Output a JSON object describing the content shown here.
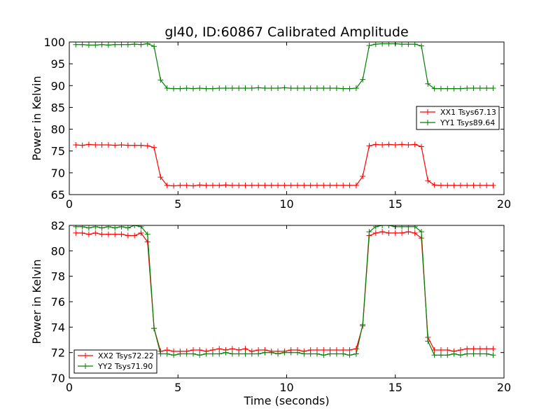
{
  "chart_data": [
    {
      "type": "line",
      "title": "gl40, ID:60867 Calibrated Amplitude",
      "xlabel": "",
      "ylabel": "Power in Kelvin",
      "xlim": [
        0,
        20
      ],
      "ylim": [
        65,
        100
      ],
      "xticks": [
        0,
        5,
        10,
        15,
        20
      ],
      "yticks": [
        65,
        70,
        75,
        80,
        85,
        90,
        95,
        100
      ],
      "grid": false,
      "legend_position": "center-right",
      "x": [
        0.3,
        0.6,
        0.9,
        1.2,
        1.5,
        1.8,
        2.1,
        2.4,
        2.7,
        3.0,
        3.3,
        3.6,
        3.9,
        4.2,
        4.5,
        4.8,
        5.1,
        5.4,
        5.7,
        6.0,
        6.3,
        6.6,
        6.9,
        7.2,
        7.5,
        7.8,
        8.1,
        8.4,
        8.7,
        9.0,
        9.3,
        9.6,
        9.9,
        10.2,
        10.5,
        10.8,
        11.1,
        11.4,
        11.7,
        12.0,
        12.3,
        12.6,
        12.9,
        13.2,
        13.5,
        13.8,
        14.1,
        14.4,
        14.7,
        15.0,
        15.3,
        15.6,
        15.9,
        16.2,
        16.5,
        16.8,
        17.1,
        17.4,
        17.7,
        18.0,
        18.3,
        18.6,
        18.9,
        19.2,
        19.5
      ],
      "series": [
        {
          "name": "XX1 Tsys67.13",
          "color": "#ff0000",
          "values": [
            76.4,
            76.3,
            76.5,
            76.4,
            76.4,
            76.4,
            76.3,
            76.4,
            76.3,
            76.3,
            76.3,
            76.2,
            75.8,
            69.0,
            67.1,
            67.0,
            67.1,
            67.1,
            67.0,
            67.2,
            67.1,
            67.1,
            67.1,
            67.2,
            67.1,
            67.1,
            67.1,
            67.1,
            67.1,
            67.1,
            67.1,
            67.1,
            67.1,
            67.1,
            67.1,
            67.1,
            67.1,
            67.1,
            67.1,
            67.1,
            67.1,
            67.1,
            67.1,
            67.1,
            69.2,
            76.2,
            76.5,
            76.4,
            76.5,
            76.4,
            76.5,
            76.4,
            76.5,
            76.0,
            68.2,
            67.2,
            67.1,
            67.1,
            67.1,
            67.1,
            67.1,
            67.1,
            67.1,
            67.1,
            67.1
          ]
        },
        {
          "name": "YY1 Tsys89.64",
          "color": "#008000",
          "values": [
            99.4,
            99.4,
            99.3,
            99.3,
            99.4,
            99.3,
            99.4,
            99.4,
            99.4,
            99.5,
            99.4,
            99.6,
            99.0,
            91.3,
            89.4,
            89.3,
            89.3,
            89.4,
            89.3,
            89.4,
            89.3,
            89.3,
            89.4,
            89.4,
            89.4,
            89.4,
            89.4,
            89.4,
            89.5,
            89.4,
            89.4,
            89.4,
            89.5,
            89.4,
            89.4,
            89.4,
            89.4,
            89.4,
            89.4,
            89.4,
            89.4,
            89.3,
            89.3,
            89.4,
            91.4,
            99.2,
            99.5,
            99.6,
            99.6,
            99.6,
            99.5,
            99.5,
            99.5,
            99.1,
            90.4,
            89.3,
            89.3,
            89.3,
            89.3,
            89.3,
            89.4,
            89.4,
            89.4,
            89.4,
            89.4
          ]
        }
      ]
    },
    {
      "type": "line",
      "title": "",
      "xlabel": "Time (seconds)",
      "ylabel": "Power in Kelvin",
      "xlim": [
        0,
        20
      ],
      "ylim": [
        70,
        82
      ],
      "xticks": [
        0,
        5,
        10,
        15,
        20
      ],
      "yticks": [
        70,
        72,
        74,
        76,
        78,
        80,
        82
      ],
      "grid": false,
      "legend_position": "lower-left",
      "x": [
        0.3,
        0.6,
        0.9,
        1.2,
        1.5,
        1.8,
        2.1,
        2.4,
        2.7,
        3.0,
        3.3,
        3.6,
        3.9,
        4.2,
        4.5,
        4.8,
        5.1,
        5.4,
        5.7,
        6.0,
        6.3,
        6.6,
        6.9,
        7.2,
        7.5,
        7.8,
        8.1,
        8.4,
        8.7,
        9.0,
        9.3,
        9.6,
        9.9,
        10.2,
        10.5,
        10.8,
        11.1,
        11.4,
        11.7,
        12.0,
        12.3,
        12.6,
        12.9,
        13.2,
        13.5,
        13.8,
        14.1,
        14.4,
        14.7,
        15.0,
        15.3,
        15.6,
        15.9,
        16.2,
        16.5,
        16.8,
        17.1,
        17.4,
        17.7,
        18.0,
        18.3,
        18.6,
        18.9,
        19.2,
        19.5
      ],
      "series": [
        {
          "name": "XX2 Tsys72.22",
          "color": "#ff0000",
          "values": [
            81.4,
            81.4,
            81.3,
            81.4,
            81.3,
            81.3,
            81.3,
            81.3,
            81.2,
            81.2,
            81.4,
            80.7,
            73.9,
            72.1,
            72.2,
            72.1,
            72.1,
            72.1,
            72.2,
            72.2,
            72.1,
            72.2,
            72.3,
            72.2,
            72.3,
            72.2,
            72.3,
            72.1,
            72.2,
            72.2,
            72.1,
            72.1,
            72.1,
            72.2,
            72.2,
            72.1,
            72.2,
            72.2,
            72.2,
            72.2,
            72.2,
            72.2,
            72.2,
            72.3,
            74.1,
            81.2,
            81.4,
            81.5,
            81.4,
            81.4,
            81.4,
            81.5,
            81.4,
            81.0,
            73.2,
            72.2,
            72.2,
            72.2,
            72.1,
            72.2,
            72.3,
            72.3,
            72.3,
            72.3,
            72.3
          ]
        },
        {
          "name": "YY2 Tsys71.90",
          "color": "#008000",
          "values": [
            81.9,
            81.9,
            81.8,
            81.9,
            81.8,
            81.9,
            81.8,
            81.9,
            81.8,
            82.0,
            81.9,
            81.3,
            73.9,
            71.9,
            71.9,
            71.8,
            71.9,
            71.9,
            71.9,
            71.8,
            71.9,
            71.9,
            71.9,
            72.0,
            71.9,
            71.9,
            71.9,
            71.9,
            71.9,
            72.0,
            72.0,
            71.9,
            72.0,
            72.0,
            72.0,
            71.9,
            71.9,
            71.9,
            71.8,
            71.9,
            71.9,
            71.9,
            71.8,
            71.9,
            74.2,
            81.5,
            81.9,
            82.0,
            82.0,
            81.9,
            81.9,
            81.9,
            81.9,
            81.5,
            72.9,
            71.8,
            71.8,
            71.8,
            71.9,
            71.8,
            71.9,
            71.9,
            71.9,
            71.9,
            71.8
          ]
        }
      ]
    }
  ]
}
